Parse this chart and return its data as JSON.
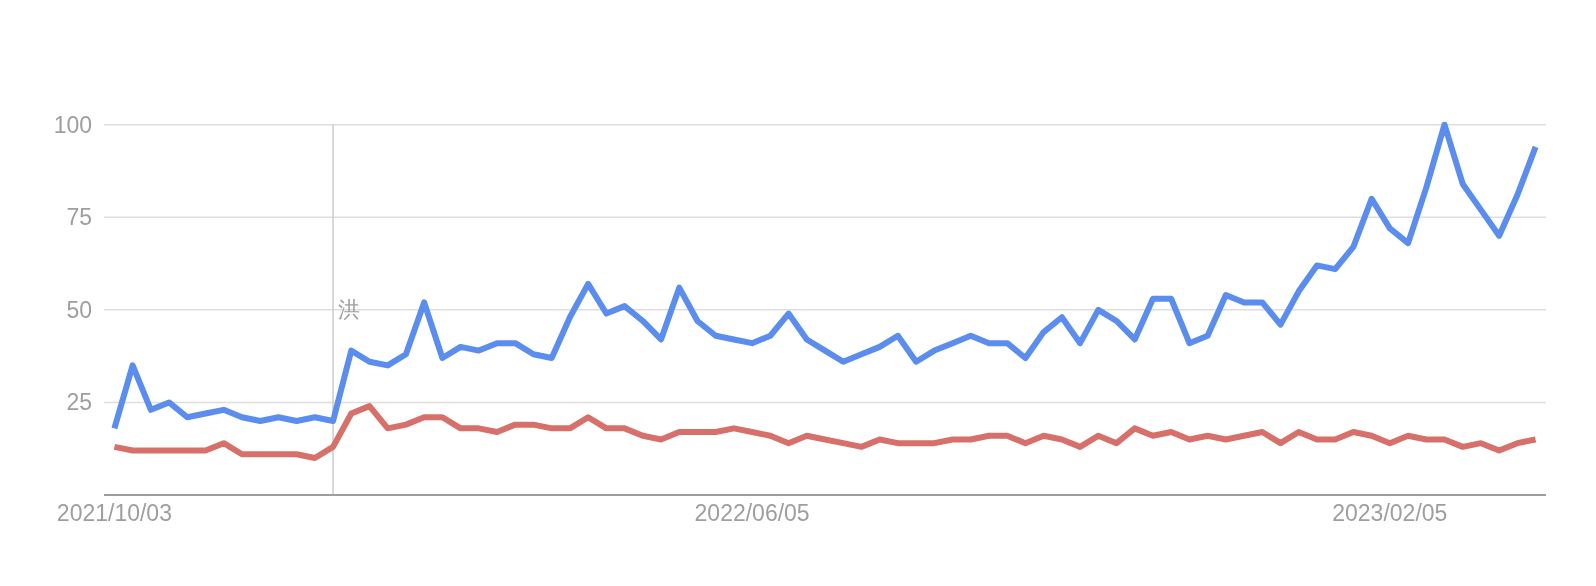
{
  "chart_data": {
    "type": "line",
    "x": [
      "2021-10-03",
      "2021-10-10",
      "2021-10-17",
      "2021-10-24",
      "2021-10-31",
      "2021-11-07",
      "2021-11-14",
      "2021-11-21",
      "2021-11-28",
      "2021-12-05",
      "2021-12-12",
      "2021-12-19",
      "2021-12-26",
      "2022-01-02",
      "2022-01-09",
      "2022-01-16",
      "2022-01-23",
      "2022-01-30",
      "2022-02-06",
      "2022-02-13",
      "2022-02-20",
      "2022-02-27",
      "2022-03-06",
      "2022-03-13",
      "2022-03-20",
      "2022-03-27",
      "2022-04-03",
      "2022-04-10",
      "2022-04-17",
      "2022-04-24",
      "2022-05-01",
      "2022-05-08",
      "2022-05-15",
      "2022-05-22",
      "2022-05-29",
      "2022-06-05",
      "2022-06-12",
      "2022-06-19",
      "2022-06-26",
      "2022-07-03",
      "2022-07-10",
      "2022-07-17",
      "2022-07-24",
      "2022-07-31",
      "2022-08-07",
      "2022-08-14",
      "2022-08-21",
      "2022-08-28",
      "2022-09-04",
      "2022-09-11",
      "2022-09-18",
      "2022-09-25",
      "2022-10-02",
      "2022-10-09",
      "2022-10-16",
      "2022-10-23",
      "2022-10-30",
      "2022-11-06",
      "2022-11-13",
      "2022-11-20",
      "2022-11-27",
      "2022-12-04",
      "2022-12-11",
      "2022-12-18",
      "2022-12-25",
      "2023-01-01",
      "2023-01-08",
      "2023-01-15",
      "2023-01-22",
      "2023-01-29",
      "2023-02-05",
      "2023-02-12",
      "2023-02-19",
      "2023-02-26",
      "2023-03-05",
      "2023-03-12",
      "2023-03-19",
      "2023-03-26",
      "2023-04-02"
    ],
    "series": [
      {
        "color": "#5b8def",
        "values": [
          18,
          35,
          23,
          25,
          21,
          22,
          23,
          21,
          20,
          21,
          20,
          21,
          20,
          39,
          36,
          35,
          38,
          52,
          37,
          40,
          39,
          41,
          41,
          38,
          37,
          48,
          57,
          49,
          51,
          47,
          42,
          56,
          47,
          43,
          42,
          41,
          43,
          49,
          42,
          39,
          36,
          38,
          40,
          43,
          36,
          39,
          41,
          43,
          41,
          41,
          37,
          44,
          48,
          41,
          50,
          47,
          42,
          53,
          53,
          41,
          43,
          54,
          52,
          52,
          46,
          55,
          62,
          61,
          67,
          80,
          72,
          68,
          83,
          100,
          84,
          77,
          70,
          81,
          94
        ]
      },
      {
        "color": "#d7706a",
        "values": [
          13,
          12,
          12,
          12,
          12,
          12,
          14,
          11,
          11,
          11,
          11,
          10,
          13,
          22,
          24,
          18,
          19,
          21,
          21,
          18,
          18,
          17,
          19,
          19,
          18,
          18,
          21,
          18,
          18,
          16,
          15,
          17,
          17,
          17,
          18,
          17,
          16,
          14,
          16,
          15,
          14,
          13,
          15,
          14,
          14,
          14,
          15,
          15,
          16,
          16,
          14,
          16,
          15,
          13,
          16,
          14,
          18,
          16,
          17,
          15,
          16,
          15,
          16,
          17,
          14,
          17,
          15,
          15,
          17,
          16,
          14,
          16,
          15,
          15,
          13,
          14,
          12,
          14,
          15
        ]
      }
    ],
    "xlim": [
      "2021-09-29",
      "2023-04-06"
    ],
    "xticks": [
      {
        "value": "2021-10-03",
        "label": "2021/10/03"
      },
      {
        "value": "2022-06-05",
        "label": "2022/06/05"
      },
      {
        "value": "2023-02-05",
        "label": "2023/02/05"
      }
    ],
    "ylim": [
      0,
      100
    ],
    "yticks": [
      25,
      50,
      75,
      100
    ],
    "grid": "y",
    "ref_lines": [
      {
        "axis": "x",
        "value": "2021-12-26",
        "label": "洪",
        "color": "#cccccc"
      }
    ]
  }
}
